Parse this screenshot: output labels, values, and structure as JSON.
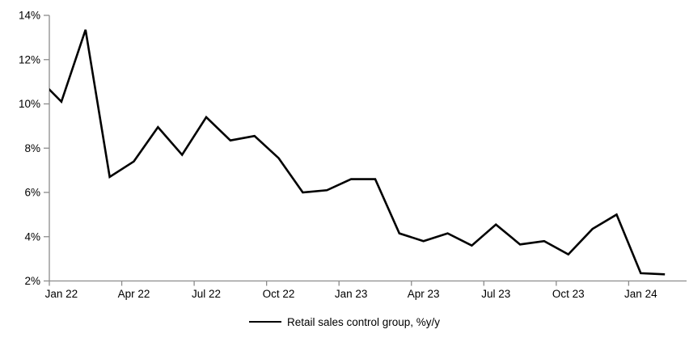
{
  "page": {
    "background_color": "#ffffff"
  },
  "legend": {
    "label": "Retail sales control group, %y/y"
  },
  "chart_data": {
    "type": "line",
    "title": "",
    "xlabel": "",
    "ylabel": "",
    "series_name": "Retail sales control group, %y/y",
    "x": [
      "Dec 21",
      "Jan 22",
      "Feb 22",
      "Mar 22",
      "Apr 22",
      "May 22",
      "Jun 22",
      "Jul 22",
      "Aug 22",
      "Sep 22",
      "Oct 22",
      "Nov 22",
      "Dec 22",
      "Jan 23",
      "Feb 23",
      "Mar 23",
      "Apr 23",
      "May 23",
      "Jun 23",
      "Jul 23",
      "Aug 23",
      "Sep 23",
      "Oct 23",
      "Nov 23",
      "Dec 23",
      "Jan 24",
      "Feb 24"
    ],
    "values": [
      11.2,
      10.1,
      13.35,
      6.7,
      7.4,
      8.95,
      7.7,
      9.4,
      8.35,
      8.55,
      7.55,
      6.0,
      6.1,
      6.6,
      6.6,
      4.15,
      3.8,
      4.15,
      3.6,
      4.55,
      3.65,
      3.8,
      3.2,
      4.35,
      5.0,
      2.35,
      2.3
    ],
    "first_point_clipped_at_left_axis": true,
    "value_at_left_axis_crossing": 10.65,
    "ylim": [
      2,
      14
    ],
    "y_ticks": [
      2,
      4,
      6,
      8,
      10,
      12,
      14
    ],
    "y_tick_labels": [
      "2%",
      "4%",
      "6%",
      "8%",
      "10%",
      "12%",
      "14%"
    ],
    "x_tick_labels": [
      "Jan 22",
      "Apr 22",
      "Jul 22",
      "Oct 22",
      "Jan 23",
      "Apr 23",
      "Jul 23",
      "Oct 23",
      "Jan 24"
    ],
    "x_tick_interval_months": 3,
    "grid": false,
    "legend_position": "bottom-center",
    "line_color": "#000000",
    "line_width": 2.6,
    "axis_color": "#8c8c8c",
    "text_color": "#000000"
  }
}
